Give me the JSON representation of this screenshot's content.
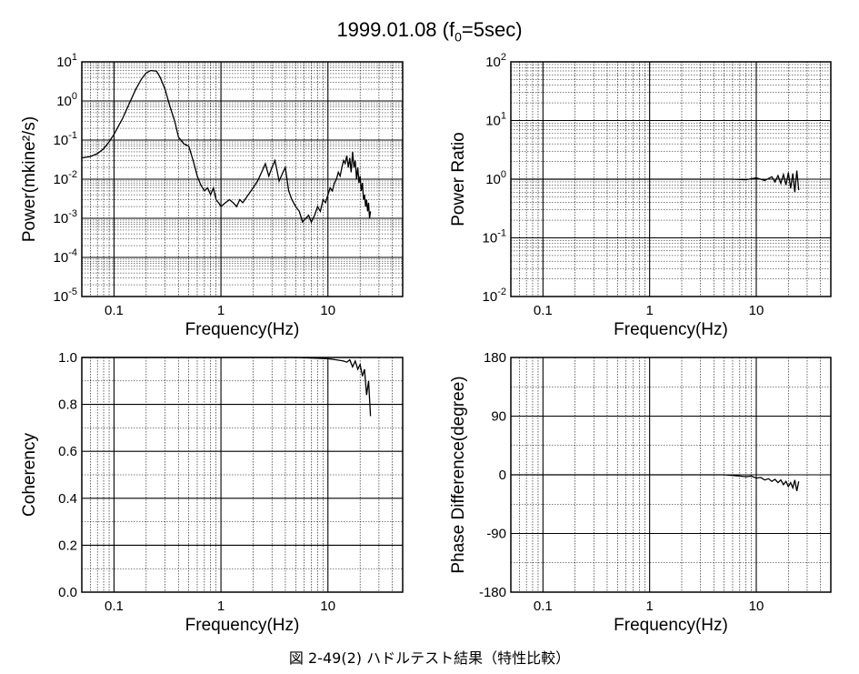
{
  "title": {
    "main": "1999.01.08 (f",
    "sub": "0",
    "rest": "=5sec)"
  },
  "caption": "図 2-49(2) ハドルテスト結果（特性比較）",
  "chart_data": [
    {
      "type": "line",
      "xlabel": "Frequency(Hz)",
      "ylabel": "Power(mkine²/s)",
      "x_scale": "log",
      "y_scale": "log",
      "xlim": [
        0.05,
        50
      ],
      "ylim": [
        1e-05,
        10
      ],
      "x_tick_labels": [
        "0.1",
        "1",
        "10"
      ],
      "y_tick_labels": [
        "10-5",
        "10-4",
        "10-3",
        "10-2",
        "10-1",
        "100",
        "101"
      ],
      "grid": true,
      "series": [
        {
          "x": [
            0.05,
            0.06,
            0.07,
            0.08,
            0.09,
            0.1,
            0.12,
            0.14,
            0.16,
            0.18,
            0.2,
            0.22,
            0.25,
            0.27,
            0.3,
            0.33,
            0.37,
            0.4,
            0.45,
            0.5,
            0.55,
            0.6,
            0.65,
            0.7,
            0.75,
            0.8,
            0.85,
            0.9,
            0.95,
            1.0,
            1.1,
            1.2,
            1.3,
            1.4,
            1.5,
            1.6,
            1.8,
            2.0,
            2.2,
            2.4,
            2.6,
            2.8,
            3.0,
            3.2,
            3.5,
            3.8,
            4.0,
            4.3,
            4.6,
            5.0,
            5.4,
            5.8,
            6.2,
            6.6,
            7.0,
            7.5,
            8.0,
            8.5,
            9.0,
            9.5,
            10,
            10.5,
            11,
            11.5,
            12,
            12.5,
            13,
            13.5,
            14,
            14.5,
            15,
            15.5,
            16,
            16.5,
            17,
            17.5,
            18,
            18.5,
            19,
            19.5,
            20,
            20.5,
            21,
            21.5,
            22,
            22.5,
            23,
            23.5,
            24,
            24.5,
            25
          ],
          "y": [
            0.035,
            0.038,
            0.045,
            0.06,
            0.09,
            0.14,
            0.35,
            0.9,
            2.0,
            3.6,
            5.2,
            6.0,
            5.8,
            4.0,
            2.0,
            0.8,
            0.3,
            0.12,
            0.08,
            0.07,
            0.03,
            0.012,
            0.007,
            0.005,
            0.006,
            0.004,
            0.006,
            0.003,
            0.0025,
            0.002,
            0.0025,
            0.003,
            0.0025,
            0.002,
            0.003,
            0.0025,
            0.004,
            0.006,
            0.009,
            0.015,
            0.025,
            0.012,
            0.02,
            0.03,
            0.009,
            0.015,
            0.02,
            0.005,
            0.003,
            0.002,
            0.0015,
            0.0008,
            0.001,
            0.0012,
            0.0008,
            0.0012,
            0.002,
            0.0015,
            0.003,
            0.0025,
            0.004,
            0.006,
            0.005,
            0.008,
            0.01,
            0.015,
            0.012,
            0.02,
            0.03,
            0.025,
            0.04,
            0.02,
            0.035,
            0.015,
            0.05,
            0.02,
            0.03,
            0.01,
            0.02,
            0.008,
            0.012,
            0.005,
            0.008,
            0.003,
            0.004,
            0.002,
            0.003,
            0.0015,
            0.0025,
            0.001,
            0.0015
          ]
        }
      ]
    },
    {
      "type": "line",
      "xlabel": "Frequency(Hz)",
      "ylabel": "Power Ratio",
      "x_scale": "log",
      "y_scale": "log",
      "xlim": [
        0.05,
        50
      ],
      "ylim": [
        0.01,
        100
      ],
      "x_tick_labels": [
        "0.1",
        "1",
        "10"
      ],
      "y_tick_labels": [
        "10-2",
        "10-1",
        "100",
        "101",
        "102"
      ],
      "grid": true,
      "series": [
        {
          "x": [
            0.05,
            0.1,
            0.2,
            0.5,
            1.0,
            2.0,
            4.0,
            6.0,
            8.0,
            10,
            12,
            14,
            15,
            16,
            17,
            18,
            19,
            20,
            21,
            22,
            23,
            24,
            25
          ],
          "y": [
            1.0,
            1.0,
            1.0,
            1.0,
            1.0,
            1.0,
            1.0,
            1.0,
            0.98,
            1.05,
            0.95,
            1.1,
            0.9,
            1.15,
            0.85,
            1.2,
            0.8,
            1.3,
            0.7,
            1.25,
            0.6,
            1.4,
            0.65
          ]
        }
      ]
    },
    {
      "type": "line",
      "xlabel": "Frequency(Hz)",
      "ylabel": "Coherency",
      "x_scale": "log",
      "y_scale": "linear",
      "xlim": [
        0.05,
        50
      ],
      "ylim": [
        0.0,
        1.0
      ],
      "x_tick_labels": [
        "0.1",
        "1",
        "10"
      ],
      "y_tick_labels": [
        "0.0",
        "0.2",
        "0.4",
        "0.6",
        "0.8",
        "1.0"
      ],
      "grid": true,
      "series": [
        {
          "x": [
            0.05,
            0.1,
            1.0,
            5.0,
            10,
            12,
            14,
            15,
            16,
            17,
            18,
            19,
            20,
            21,
            22,
            23,
            24,
            25
          ],
          "y": [
            1.0,
            1.0,
            1.0,
            1.0,
            0.995,
            0.99,
            0.985,
            0.98,
            0.99,
            0.96,
            0.985,
            0.95,
            0.97,
            0.92,
            0.95,
            0.84,
            0.9,
            0.75
          ]
        }
      ]
    },
    {
      "type": "line",
      "xlabel": "Frequency(Hz)",
      "ylabel": "Phase Difference(degree)",
      "x_scale": "log",
      "y_scale": "linear",
      "xlim": [
        0.05,
        50
      ],
      "ylim": [
        -180,
        180
      ],
      "x_tick_labels": [
        "0.1",
        "1",
        "10"
      ],
      "y_tick_labels": [
        "-180",
        "-90",
        "0",
        "90",
        "180"
      ],
      "grid": true,
      "series": [
        {
          "x": [
            0.05,
            0.1,
            1.0,
            3.0,
            5.0,
            6.0,
            7.0,
            8.0,
            9.0,
            10,
            11,
            12,
            13,
            14,
            15,
            16,
            17,
            18,
            19,
            20,
            21,
            22,
            23,
            24,
            25
          ],
          "y": [
            0,
            0,
            0,
            0,
            0,
            -1,
            -2,
            -3,
            -2,
            -5,
            -4,
            -8,
            -6,
            -10,
            -7,
            -12,
            -8,
            -15,
            -10,
            -18,
            -12,
            -20,
            -8,
            -25,
            -10
          ]
        }
      ]
    }
  ]
}
